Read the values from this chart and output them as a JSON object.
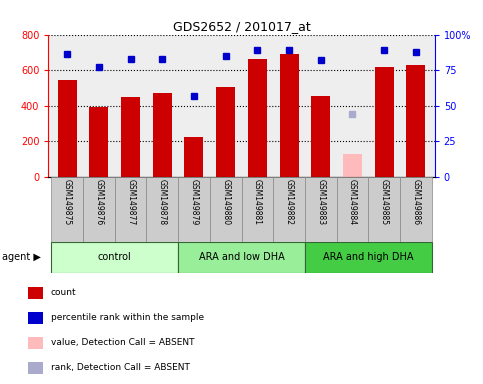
{
  "title": "GDS2652 / 201017_at",
  "samples": [
    "GSM149875",
    "GSM149876",
    "GSM149877",
    "GSM149878",
    "GSM149879",
    "GSM149880",
    "GSM149881",
    "GSM149882",
    "GSM149883",
    "GSM149884",
    "GSM149885",
    "GSM149886"
  ],
  "counts": [
    545,
    390,
    450,
    470,
    225,
    505,
    665,
    690,
    455,
    125,
    620,
    630
  ],
  "percentile_ranks": [
    86,
    77,
    83,
    83,
    57,
    85,
    89,
    89,
    82,
    null,
    89,
    88
  ],
  "absent_value": [
    null,
    null,
    null,
    null,
    null,
    null,
    null,
    null,
    null,
    125,
    null,
    null
  ],
  "absent_rank_val": [
    null,
    null,
    null,
    null,
    null,
    null,
    null,
    null,
    null,
    44,
    null,
    null
  ],
  "bar_color_normal": "#cc0000",
  "bar_color_absent": "#ffbbbb",
  "dot_color_normal": "#0000cc",
  "dot_color_absent": "#aaaacc",
  "groups": [
    {
      "label": "control",
      "start": 0,
      "end": 4,
      "color": "#ccffcc"
    },
    {
      "label": "ARA and low DHA",
      "start": 4,
      "end": 8,
      "color": "#99ee99"
    },
    {
      "label": "ARA and high DHA",
      "start": 8,
      "end": 12,
      "color": "#44cc44"
    }
  ],
  "ylim_left": [
    0,
    800
  ],
  "ylim_right": [
    0,
    100
  ],
  "yticks_left": [
    0,
    200,
    400,
    600,
    800
  ],
  "yticks_right": [
    0,
    25,
    50,
    75,
    100
  ],
  "legend_items": [
    {
      "label": "count",
      "color": "#cc0000"
    },
    {
      "label": "percentile rank within the sample",
      "color": "#0000cc"
    },
    {
      "label": "value, Detection Call = ABSENT",
      "color": "#ffbbbb"
    },
    {
      "label": "rank, Detection Call = ABSENT",
      "color": "#aaaacc"
    }
  ],
  "background_color": "#ffffff",
  "plot_bg_color": "#eeeeee",
  "sample_box_color": "#cccccc"
}
